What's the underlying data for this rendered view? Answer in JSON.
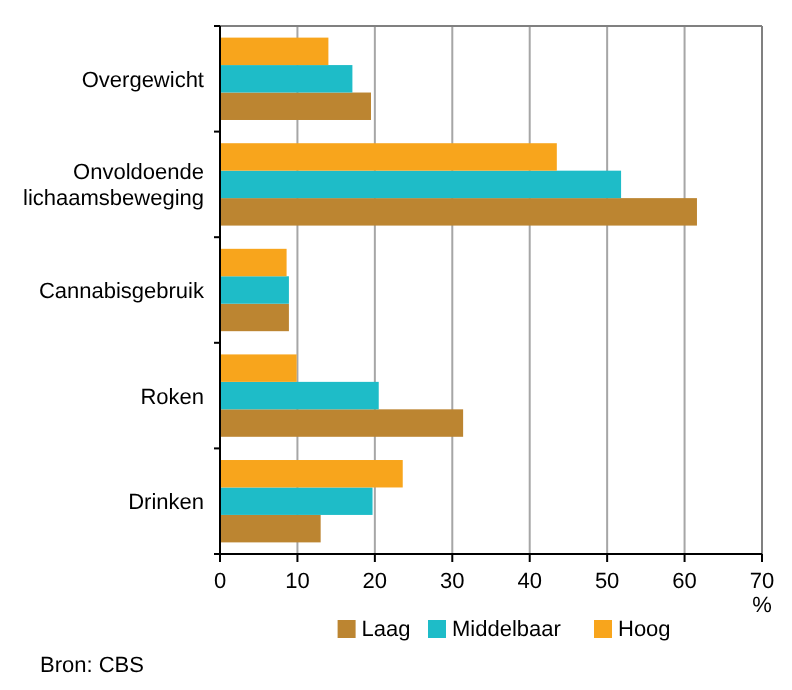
{
  "chart_data": {
    "type": "bar",
    "orientation": "horizontal",
    "categories": [
      "Overgewicht",
      "Onvoldoende lichaamsbeweging",
      "Cannabisgebruik",
      "Roken",
      "Drinken"
    ],
    "series": [
      {
        "name": "Laag",
        "color": "#bc8531",
        "values": [
          19.5,
          61.6,
          8.9,
          31.4,
          13.0
        ]
      },
      {
        "name": "Middelbaar",
        "color": "#1ebcc8",
        "values": [
          17.1,
          51.8,
          8.9,
          20.5,
          19.7
        ]
      },
      {
        "name": "Hoog",
        "color": "#f8a51c",
        "values": [
          14.0,
          43.5,
          8.6,
          9.9,
          23.6
        ]
      }
    ],
    "xlim": [
      0,
      70
    ],
    "xticks": [
      0,
      10,
      20,
      30,
      40,
      50,
      60,
      70
    ],
    "xlabel": "%",
    "grid": "x",
    "legend": "bottom",
    "annotations": [
      "Bron: CBS"
    ]
  }
}
